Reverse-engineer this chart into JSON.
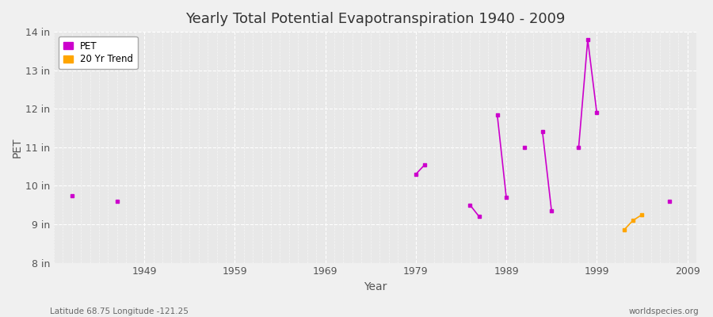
{
  "title": "Yearly Total Potential Evapotranspiration 1940 - 2009",
  "xlabel": "Year",
  "ylabel": "PET",
  "background_color": "#f0f0f0",
  "plot_bg_color": "#e8e8e8",
  "pet_color": "#cc00cc",
  "trend_color": "#ffa500",
  "ylim": [
    8,
    14
  ],
  "ytick_labels": [
    "8 in",
    "9 in",
    "10 in",
    "11 in",
    "12 in",
    "13 in",
    "14 in"
  ],
  "ytick_values": [
    8,
    9,
    10,
    11,
    12,
    13,
    14
  ],
  "xlim": [
    1939,
    2010
  ],
  "xtick_values": [
    1949,
    1959,
    1969,
    1979,
    1989,
    1999,
    2009
  ],
  "footnote_left": "Latitude 68.75 Longitude -121.25",
  "footnote_right": "worldspecies.org",
  "pet_segments": [
    {
      "years": [
        1941
      ],
      "values": [
        9.75
      ]
    },
    {
      "years": [
        1946
      ],
      "values": [
        9.6
      ]
    },
    {
      "years": [
        1979,
        1980
      ],
      "values": [
        10.3,
        10.55
      ]
    },
    {
      "years": [
        1985,
        1986
      ],
      "values": [
        9.5,
        9.2
      ]
    },
    {
      "years": [
        1988,
        1989
      ],
      "values": [
        11.85,
        9.7
      ]
    },
    {
      "years": [
        1991
      ],
      "values": [
        11.0
      ]
    },
    {
      "years": [
        1993,
        1994
      ],
      "values": [
        11.4,
        9.35
      ]
    },
    {
      "years": [
        1997,
        1998,
        1999
      ],
      "values": [
        11.0,
        13.8,
        11.9
      ]
    },
    {
      "years": [
        2007
      ],
      "values": [
        9.6
      ]
    }
  ],
  "trend_segments": [
    {
      "years": [
        2002,
        2003,
        2004
      ],
      "values": [
        8.85,
        9.1,
        9.25
      ]
    }
  ]
}
